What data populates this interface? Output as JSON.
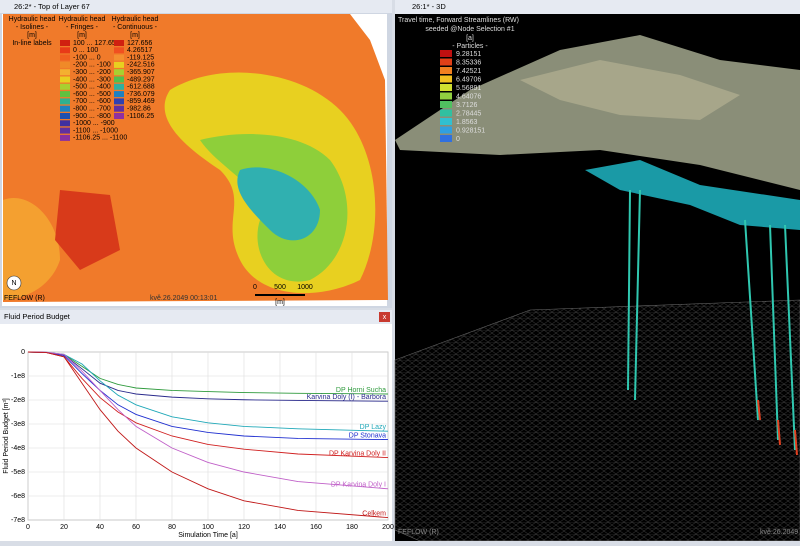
{
  "map_window": {
    "title": "26:2* - Top of Layer 67",
    "isolines_legend": {
      "title": "Hydraulic head",
      "style": "- Isolines -",
      "unit": "[m]",
      "note": "In-line labels"
    },
    "fringes_legend": {
      "title": "Hydraulic head",
      "style": "- Fringes -",
      "unit": "[m]",
      "items": [
        "100 ... 127.656",
        "0 ... 100",
        "-100 ... 0",
        "-200 ... -100",
        "-300 ... -200",
        "-400 ... -300",
        "-500 ... -400",
        "-600 ... -500",
        "-700 ... -600",
        "-800 ... -700",
        "-900 ... -800",
        "-1000 ... -900",
        "-1100 ... -1000",
        "-1106.25 ... -1100"
      ]
    },
    "continuous_legend": {
      "title": "Hydraulic head",
      "style": "- Continuous -",
      "unit": "[m]",
      "items": [
        "127.656",
        "4.26517",
        "-119.125",
        "-242.516",
        "-365.907",
        "-489.297",
        "-612.688",
        "-736.079",
        "-859.469",
        "-982.86",
        "-1106.25"
      ]
    },
    "scale_labels": [
      "0",
      "500",
      "1000"
    ],
    "scale_unit": "[m]",
    "north": "N",
    "brand": "FEFLOW (R)",
    "timestamp": "kvě.26.2049 00:13:01"
  },
  "budget_window": {
    "title": "Fluid Period Budget",
    "close": "x"
  },
  "chart_data": {
    "type": "line",
    "xlabel": "Simulation Time [a]",
    "ylabel": "Fluid Period Budget [m³]",
    "x": [
      0,
      10,
      20,
      30,
      40,
      50,
      60,
      80,
      100,
      120,
      150,
      200
    ],
    "xlim": [
      0,
      200
    ],
    "xticks": [
      0,
      20,
      40,
      60,
      80,
      100,
      120,
      140,
      160,
      180,
      200
    ],
    "ylim": [
      -700000000,
      0
    ],
    "yticks": [
      {
        "value": 0,
        "label": "0"
      },
      {
        "value": -100000000,
        "label": "-1e8"
      },
      {
        "value": -200000000,
        "label": "-2e8"
      },
      {
        "value": -300000000,
        "label": "-3e8"
      },
      {
        "value": -400000000,
        "label": "-4e8"
      },
      {
        "value": -500000000,
        "label": "-5e8"
      },
      {
        "value": -600000000,
        "label": "-6e8"
      },
      {
        "value": -700000000,
        "label": "-7e8"
      }
    ],
    "grid": true,
    "series": [
      {
        "name": "DP Horni Sucha",
        "color": "#2e9a3c",
        "values": [
          0,
          -2000000,
          -10000000,
          -60000000,
          -110000000,
          -135000000,
          -150000000,
          -160000000,
          -165000000,
          -169000000,
          -172000000,
          -175000000
        ]
      },
      {
        "name": "Karvina Doly (I) - Barbora",
        "color": "#2a2a8c",
        "values": [
          0,
          -2000000,
          -12000000,
          -70000000,
          -130000000,
          -160000000,
          -175000000,
          -188000000,
          -195000000,
          -199000000,
          -202000000,
          -205000000
        ]
      },
      {
        "name": "DP Lazy",
        "color": "#20a8b8",
        "values": [
          0,
          -1000000,
          -10000000,
          -50000000,
          -120000000,
          -180000000,
          -220000000,
          -270000000,
          -295000000,
          -310000000,
          -320000000,
          -330000000
        ]
      },
      {
        "name": "DP Stonava",
        "color": "#2030d0",
        "values": [
          0,
          -2000000,
          -15000000,
          -90000000,
          -160000000,
          -220000000,
          -260000000,
          -310000000,
          -335000000,
          -350000000,
          -360000000,
          -365000000
        ]
      },
      {
        "name": "DP Karvina Doly II",
        "color": "#d02020",
        "values": [
          0,
          -2000000,
          -20000000,
          -110000000,
          -190000000,
          -250000000,
          -295000000,
          -350000000,
          -385000000,
          -405000000,
          -425000000,
          -440000000
        ]
      },
      {
        "name": "DP Karvina Doly I",
        "color": "#c060c8",
        "values": [
          0,
          -1000000,
          -10000000,
          -80000000,
          -160000000,
          -240000000,
          -310000000,
          -400000000,
          -460000000,
          -500000000,
          -540000000,
          -570000000
        ]
      },
      {
        "name": "Celkem",
        "color": "#c01818",
        "values": [
          0,
          -2000000,
          -20000000,
          -130000000,
          -240000000,
          -330000000,
          -400000000,
          -500000000,
          -570000000,
          -620000000,
          -660000000,
          -690000000
        ]
      }
    ]
  },
  "view3d_window": {
    "title": "26:1* - 3D",
    "legend_title": "Travel time, Forward Streamlines (RW)",
    "legend_subtitle": "seeded @Node Selection #1",
    "unit": "[a]",
    "style": "- Particles -",
    "items": [
      "9.28151",
      "8.35336",
      "7.42521",
      "6.49706",
      "5.56891",
      "4.64076",
      "3.7126",
      "2.78445",
      "1.8563",
      "0.928151",
      "0"
    ],
    "brand": "FEFLOW (R)",
    "timestamp": "kvě.26.2049"
  }
}
